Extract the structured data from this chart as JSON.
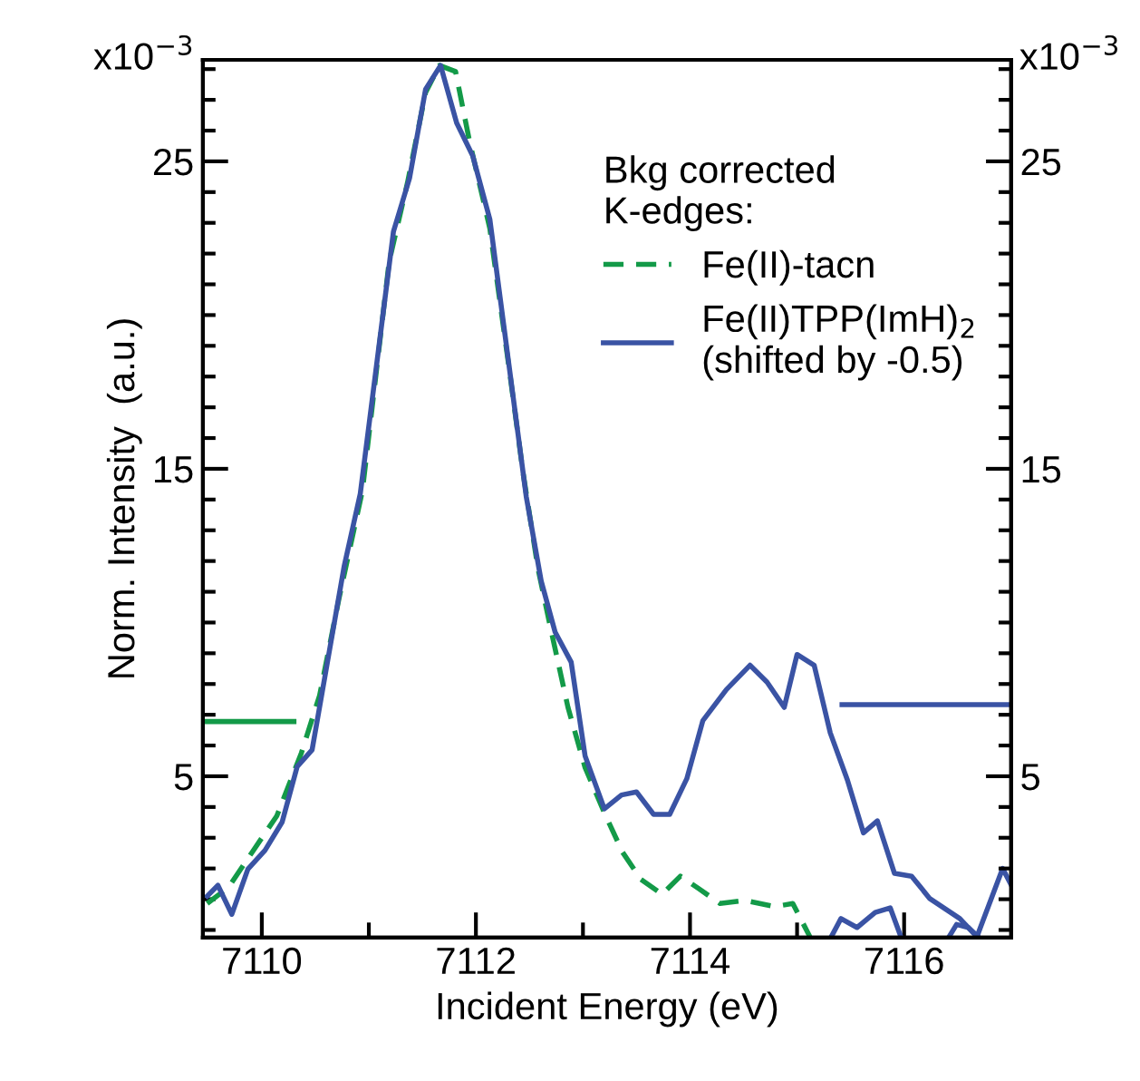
{
  "chart_data": {
    "type": "line",
    "xlabel": "Incident Energy (eV)",
    "ylabel": "Norm. Intensity  (a.u.)",
    "legend_title": "Bkg corrected\nK-edges:",
    "legend": "top right",
    "grid": false,
    "xlim": [
      7109.45,
      7117.0
    ],
    "ylim": [
      -0.25,
      28.3
    ],
    "y2lim": [
      -0.25,
      28.3
    ],
    "xticks": [
      7110,
      {
        "value": 7111,
        "label": null
      },
      7112,
      {
        "value": 7113,
        "label": null
      },
      7114,
      {
        "value": 7115,
        "label": null
      },
      7116
    ],
    "yticks": [
      {
        "value": 0,
        "label": null
      },
      {
        "value": 1,
        "label": null
      },
      {
        "value": 2,
        "label": null
      },
      {
        "value": 3,
        "label": null
      },
      {
        "value": 4,
        "label": null
      },
      5,
      {
        "value": 6,
        "label": null
      },
      {
        "value": 7,
        "label": null
      },
      {
        "value": 8,
        "label": null
      },
      {
        "value": 9,
        "label": null
      },
      {
        "value": 10,
        "label": null
      },
      {
        "value": 11,
        "label": null
      },
      {
        "value": 12,
        "label": null
      },
      {
        "value": 13,
        "label": null
      },
      {
        "value": 14,
        "label": null
      },
      15,
      {
        "value": 16,
        "label": null
      },
      {
        "value": 17,
        "label": null
      },
      {
        "value": 18,
        "label": null
      },
      {
        "value": 19,
        "label": null
      },
      {
        "value": 20,
        "label": null
      },
      {
        "value": 21,
        "label": null
      },
      {
        "value": 22,
        "label": null
      },
      {
        "value": 23,
        "label": null
      },
      {
        "value": 24,
        "label": null
      },
      25,
      {
        "value": 26,
        "label": null
      },
      {
        "value": 27,
        "label": null
      },
      {
        "value": 28,
        "label": null
      }
    ],
    "y2ticks": [
      {
        "value": 0,
        "label": null
      },
      {
        "value": 1,
        "label": null
      },
      {
        "value": 2,
        "label": null
      },
      {
        "value": 3,
        "label": null
      },
      {
        "value": 4,
        "label": null
      },
      5,
      {
        "value": 6,
        "label": null
      },
      {
        "value": 7,
        "label": null
      },
      {
        "value": 8,
        "label": null
      },
      {
        "value": 9,
        "label": null
      },
      {
        "value": 10,
        "label": null
      },
      {
        "value": 11,
        "label": null
      },
      {
        "value": 12,
        "label": null
      },
      {
        "value": 13,
        "label": null
      },
      {
        "value": 14,
        "label": null
      },
      15,
      {
        "value": 16,
        "label": null
      },
      {
        "value": 17,
        "label": null
      },
      {
        "value": 18,
        "label": null
      },
      {
        "value": 19,
        "label": null
      },
      {
        "value": 20,
        "label": null
      },
      {
        "value": 21,
        "label": null
      },
      {
        "value": 22,
        "label": null
      },
      {
        "value": 23,
        "label": null
      },
      {
        "value": 24,
        "label": null
      },
      25,
      {
        "value": 26,
        "label": null
      },
      {
        "value": 27,
        "label": null
      },
      {
        "value": 28,
        "label": null
      }
    ],
    "annotations": [
      "x10$^{−3}$",
      "x10$^{−3}$"
    ],
    "series": [
      {
        "name": "Fe(II)-tacn",
        "color": "#139a48",
        "line_style": "dashed",
        "x": [
          7109.49,
          7109.69,
          7109.91,
          7110.14,
          7110.37,
          7110.54,
          7110.72,
          7110.94,
          7111.19,
          7111.36,
          7111.53,
          7111.66,
          7111.81,
          7111.94,
          7112.13,
          7112.32,
          7112.44,
          7112.58,
          7112.7,
          7112.86,
          7113.02,
          7113.2,
          7113.37,
          7113.54,
          7113.74,
          7113.91,
          7114.08,
          7114.28,
          7114.51,
          7114.79,
          7114.96,
          7115.12
        ],
        "values": [
          0.86,
          1.39,
          2.53,
          3.71,
          5.76,
          7.63,
          10.76,
          14.29,
          21.75,
          24.29,
          27.24,
          28.12,
          27.92,
          25.66,
          22.82,
          18.02,
          14.88,
          11.75,
          9.78,
          7.24,
          5.28,
          3.81,
          2.53,
          1.65,
          1.16,
          1.75,
          1.35,
          0.86,
          0.96,
          0.76,
          0.86,
          -0.22
        ]
      },
      {
        "name": "Fe(II)TPP(ImH)$_{2}$\n(shifted by -0.5)",
        "color": "#3a53a4",
        "line_style": "solid",
        "x": [
          7109.49,
          7109.59,
          7109.72,
          7109.87,
          7110.03,
          7110.19,
          7110.33,
          7110.47,
          7110.77,
          7110.92,
          7111.23,
          7111.38,
          7111.53,
          7111.67,
          7111.82,
          7111.97,
          7112.13,
          7112.47,
          7112.61,
          7112.74,
          7112.89,
          7113.02,
          7113.2,
          7113.36,
          7113.5,
          7113.66,
          7113.81,
          7113.97,
          7114.12,
          7114.34,
          7114.56,
          7114.72,
          7114.88,
          7115.0,
          7115.16,
          7115.31,
          7115.47,
          7115.62,
          7115.75,
          7115.91,
          7116.07,
          7116.24,
          7116.52,
          7116.68,
          7116.92,
          7117.0
        ],
        "values": [
          1.1,
          1.45,
          0.51,
          1.98,
          2.59,
          3.51,
          5.31,
          5.86,
          11.84,
          14.19,
          22.72,
          24.45,
          27.34,
          28.12,
          26.25,
          25.18,
          23.12,
          14.1,
          11.35,
          9.69,
          8.71,
          5.66,
          3.94,
          4.39,
          4.49,
          3.76,
          3.76,
          4.92,
          6.81,
          7.82,
          8.61,
          8.06,
          7.24,
          8.96,
          8.61,
          6.41,
          4.88,
          3.16,
          3.55,
          1.84,
          1.75,
          1.02,
          0.37,
          -0.22,
          2.0,
          1.47
        ]
      },
      {
        "color": "#3a53a4",
        "line_style": "solid",
        "x": [
          7115.32,
          7115.41,
          7115.56,
          7115.73,
          7115.87,
          7115.97,
          7116.2,
          7116.42,
          7116.49,
          7116.6,
          7116.69
        ],
        "values": [
          -0.22,
          0.37,
          0.08,
          0.57,
          0.72,
          -0.22,
          null,
          -0.22,
          0.18,
          0.08,
          -0.22
        ]
      },
      {
        "color": "#139a48",
        "line_style": "solid",
        "x": [
          7109.45,
          7110.3
        ],
        "values": [
          6.78,
          6.78
        ]
      },
      {
        "color": "#3a53a4",
        "line_style": "solid",
        "x": [
          7115.42,
          7117.0
        ],
        "values": [
          7.33,
          7.33
        ]
      }
    ]
  }
}
